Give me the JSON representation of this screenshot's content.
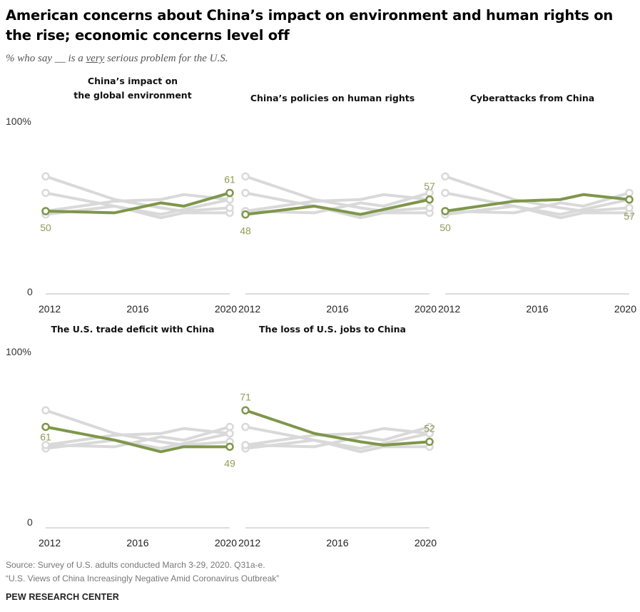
{
  "title": "American concerns about China’s impact on environment and human rights on the rise; economic concerns level off",
  "subtitle": {
    "prefix": "% who say __ is a ",
    "emphasis": "very",
    "suffix": " serious problem for the U.S."
  },
  "source": {
    "line1": "Source: Survey of U.S. adults conducted March 3-29, 2020. Q31a-e.",
    "line2": "“U.S. Views of China Increasingly Negative Amid Coronavirus Outbreak”"
  },
  "brand": "PEW RESEARCH CENTER",
  "colors": {
    "highlight": "#7e964a",
    "background_series": "#d9d9d9",
    "axis": "#dddddd",
    "label_highlight": "#8f9d55"
  },
  "chart_data": {
    "type": "line",
    "x": [
      2012,
      2015,
      2017,
      2018,
      2020
    ],
    "ylim": [
      0,
      100
    ],
    "y_tick_labels": [
      "100%",
      "0"
    ],
    "x_tick_labels": [
      "2012",
      "2016",
      "2020"
    ],
    "series": [
      {
        "name": "China’s impact on the global environment",
        "values": [
          50,
          49,
          55,
          53,
          61
        ],
        "start_label": "50",
        "end_label": "61"
      },
      {
        "name": "China’s policies on human rights",
        "values": [
          48,
          53,
          48,
          51,
          57
        ],
        "start_label": "48",
        "end_label": "57"
      },
      {
        "name": "Cyberattacks from China",
        "values": [
          50,
          56,
          57,
          60,
          57
        ],
        "start_label": "50",
        "end_label": "57"
      },
      {
        "name": "The U.S. trade deficit with China",
        "values": [
          61,
          53,
          46,
          49,
          49
        ],
        "start_label": "61",
        "end_label": "49"
      },
      {
        "name": "The loss of U.S. jobs to China",
        "values": [
          71,
          57,
          52,
          50,
          52
        ],
        "start_label": "71",
        "end_label": "52"
      }
    ],
    "panel_titles": [
      [
        "China’s impact on",
        "the global environment"
      ],
      [
        "China’s policies on human rights"
      ],
      [
        "Cyberattacks from China"
      ],
      [
        "The U.S. trade deficit with China"
      ],
      [
        "The loss of U.S. jobs to China"
      ]
    ]
  }
}
